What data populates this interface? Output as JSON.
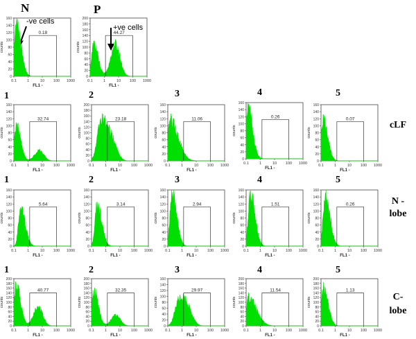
{
  "figure": {
    "controls_header": {
      "negative": "N",
      "positive": "P"
    },
    "annotations": {
      "negative_cells": "-ve cells",
      "positive_cells": "+ve cells"
    },
    "row_labels": {
      "clf": "cLF",
      "n_lobe_line1": "N -",
      "n_lobe_line2": "lobe",
      "c_lobe_line1": "C-",
      "c_lobe_line2": "lobe"
    },
    "sample_numbers": [
      "1",
      "2",
      "3",
      "4",
      "5"
    ],
    "colors": {
      "histogram": "#00e000",
      "axis": "#444444",
      "gate": "#333333"
    }
  },
  "chart_data": [
    {
      "id": "N",
      "type": "area",
      "row": "control",
      "title": "N",
      "xlabel": "FL1",
      "ylabel": "counts",
      "xscale": "log",
      "xlim": [
        0.1,
        1000
      ],
      "ylim": [
        0,
        160
      ],
      "yticks": [
        0,
        20,
        40,
        60,
        80,
        100,
        120,
        140,
        160
      ],
      "xticks": [
        "0.1",
        "1",
        "10",
        "100",
        "1000"
      ],
      "gate_percent": "0.18",
      "gate_range": [
        1.2,
        100
      ],
      "shape": "neg",
      "peak_x": 0.15,
      "peak_y": 150,
      "shoulder_x": 0,
      "shoulder_y": 0
    },
    {
      "id": "P",
      "type": "area",
      "row": "control",
      "title": "P",
      "xlabel": "FL1",
      "ylabel": "counts",
      "xscale": "log",
      "xlim": [
        0.1,
        1000
      ],
      "ylim": [
        0,
        200
      ],
      "yticks": [
        0,
        20,
        40,
        60,
        80,
        100,
        120,
        140,
        160,
        180,
        200
      ],
      "xticks": [
        "0.1",
        "1",
        "10",
        "100",
        "1000"
      ],
      "gate_percent": "44.27",
      "gate_range": [
        1.2,
        100
      ],
      "shape": "bi",
      "peak_x": 0.18,
      "peak_y": 110,
      "shoulder_x": 6,
      "shoulder_y": 110
    },
    {
      "id": "cLF-1",
      "type": "area",
      "row": "cLF",
      "sample": "1",
      "xlabel": "FL1",
      "ylabel": "counts",
      "xscale": "log",
      "xlim": [
        0.1,
        1000
      ],
      "ylim": [
        0,
        160
      ],
      "yticks": [
        0,
        20,
        40,
        60,
        80,
        100,
        120,
        140,
        160
      ],
      "xticks": [
        "0.1",
        "1",
        "10",
        "100",
        "1000"
      ],
      "gate_percent": "32.74",
      "gate_range": [
        1.3,
        100
      ],
      "shape": "bi",
      "peak_x": 0.15,
      "peak_y": 100,
      "shoulder_x": 6,
      "shoulder_y": 30
    },
    {
      "id": "cLF-2",
      "type": "area",
      "row": "cLF",
      "sample": "2",
      "xlabel": "FL1",
      "ylabel": "counts",
      "xscale": "log",
      "xlim": [
        0.1,
        1000
      ],
      "ylim": [
        0,
        200
      ],
      "yticks": [
        0,
        20,
        40,
        60,
        80,
        100,
        120,
        140,
        160,
        180,
        200
      ],
      "xticks": [
        "0.1",
        "1",
        "10",
        "100",
        "1000"
      ],
      "gate_percent": "23.18",
      "gate_range": [
        1.3,
        100
      ],
      "shape": "wide",
      "peak_x": 0.5,
      "peak_y": 140,
      "shoulder_x": 3,
      "shoulder_y": 90
    },
    {
      "id": "cLF-3",
      "type": "area",
      "row": "cLF",
      "sample": "3",
      "xlabel": "FL1",
      "ylabel": "counts",
      "xscale": "log",
      "xlim": [
        0.1,
        1000
      ],
      "ylim": [
        0,
        160
      ],
      "yticks": [
        0,
        20,
        40,
        60,
        80,
        100,
        120,
        140,
        160
      ],
      "xticks": [
        "0.1",
        "1",
        "10",
        "100",
        "1000"
      ],
      "gate_percent": "11.06",
      "gate_range": [
        1.3,
        100
      ],
      "shape": "tail",
      "peak_x": 0.15,
      "peak_y": 115,
      "shoulder_x": 0,
      "shoulder_y": 0
    },
    {
      "id": "cLF-4",
      "type": "area",
      "row": "cLF",
      "sample": "4",
      "xlabel": "FL1",
      "ylabel": "counts",
      "xscale": "log",
      "xlim": [
        0.1,
        1000
      ],
      "ylim": [
        0,
        160
      ],
      "yticks": [
        0,
        20,
        40,
        60,
        80,
        100,
        120,
        140,
        160
      ],
      "xticks": [
        "0.1",
        "1",
        "10",
        "100",
        "1000"
      ],
      "gate_percent": "0.26",
      "gate_range": [
        1.3,
        100
      ],
      "shape": "neg",
      "peak_x": 0.13,
      "peak_y": 150,
      "shoulder_x": 0,
      "shoulder_y": 0
    },
    {
      "id": "cLF-5",
      "type": "area",
      "row": "cLF",
      "sample": "5",
      "xlabel": "FL1",
      "ylabel": "counts",
      "xscale": "log",
      "xlim": [
        0.1,
        1000
      ],
      "ylim": [
        0,
        160
      ],
      "yticks": [
        0,
        20,
        40,
        60,
        80,
        100,
        120,
        140,
        160
      ],
      "xticks": [
        "0.1",
        "1",
        "10",
        "100",
        "1000"
      ],
      "gate_percent": "0.07",
      "gate_range": [
        1.3,
        100
      ],
      "shape": "neg",
      "peak_x": 0.14,
      "peak_y": 115,
      "shoulder_x": 0,
      "shoulder_y": 0
    },
    {
      "id": "N-1",
      "type": "area",
      "row": "N-lobe",
      "sample": "1",
      "xlabel": "FL1",
      "ylabel": "counts",
      "xscale": "log",
      "xlim": [
        0.1,
        1000
      ],
      "ylim": [
        0,
        160
      ],
      "yticks": [
        0,
        20,
        40,
        60,
        80,
        100,
        120,
        140,
        160
      ],
      "xticks": [
        "0.1",
        "1",
        "10",
        "100",
        "1000"
      ],
      "gate_percent": "5.64",
      "gate_range": [
        1.3,
        100
      ],
      "shape": "neg",
      "peak_x": 0.3,
      "peak_y": 110,
      "shoulder_x": 0,
      "shoulder_y": 0
    },
    {
      "id": "N-2",
      "type": "area",
      "row": "N-lobe",
      "sample": "2",
      "xlabel": "FL1",
      "ylabel": "counts",
      "xscale": "log",
      "xlim": [
        0.1,
        1000
      ],
      "ylim": [
        0,
        160
      ],
      "yticks": [
        0,
        20,
        40,
        60,
        80,
        100,
        120,
        140,
        160
      ],
      "xticks": [
        "0.1",
        "1",
        "10",
        "100",
        "1000"
      ],
      "gate_percent": "3.14",
      "gate_range": [
        1.3,
        100
      ],
      "shape": "neg",
      "peak_x": 0.25,
      "peak_y": 115,
      "shoulder_x": 0,
      "shoulder_y": 0
    },
    {
      "id": "N-3",
      "type": "area",
      "row": "N-lobe",
      "sample": "3",
      "xlabel": "FL1",
      "ylabel": "counts",
      "xscale": "log",
      "xlim": [
        0.1,
        1000
      ],
      "ylim": [
        0,
        160
      ],
      "yticks": [
        0,
        20,
        40,
        60,
        80,
        100,
        120,
        140,
        160
      ],
      "xticks": [
        "0.1",
        "1",
        "10",
        "100",
        "1000"
      ],
      "gate_percent": "2.94",
      "gate_range": [
        1.3,
        100
      ],
      "shape": "neg",
      "peak_x": 0.2,
      "peak_y": 150,
      "shoulder_x": 0,
      "shoulder_y": 0
    },
    {
      "id": "N-4",
      "type": "area",
      "row": "N-lobe",
      "sample": "4",
      "xlabel": "FL1",
      "ylabel": "counts",
      "xscale": "log",
      "xlim": [
        0.1,
        1000
      ],
      "ylim": [
        0,
        160
      ],
      "yticks": [
        0,
        20,
        40,
        60,
        80,
        100,
        120,
        140,
        160
      ],
      "xticks": [
        "0.1",
        "1",
        "10",
        "100",
        "1000"
      ],
      "gate_percent": "1.51",
      "gate_range": [
        1.3,
        100
      ],
      "shape": "neg",
      "peak_x": 0.2,
      "peak_y": 150,
      "shoulder_x": 0,
      "shoulder_y": 0
    },
    {
      "id": "N-5",
      "type": "area",
      "row": "N-lobe",
      "sample": "5",
      "xlabel": "FL1",
      "ylabel": "counts",
      "xscale": "log",
      "xlim": [
        0.1,
        1000
      ],
      "ylim": [
        0,
        160
      ],
      "yticks": [
        0,
        20,
        40,
        60,
        80,
        100,
        120,
        140,
        160
      ],
      "xticks": [
        "0.1",
        "1",
        "10",
        "100",
        "1000"
      ],
      "gate_percent": "0.26",
      "gate_range": [
        1.3,
        100
      ],
      "shape": "neg",
      "peak_x": 0.2,
      "peak_y": 150,
      "shoulder_x": 0,
      "shoulder_y": 0
    },
    {
      "id": "C-1",
      "type": "area",
      "row": "C-lobe",
      "sample": "1",
      "xlabel": "FL1",
      "ylabel": "counts",
      "xscale": "log",
      "xlim": [
        0.1,
        1000
      ],
      "ylim": [
        0,
        200
      ],
      "yticks": [
        0,
        20,
        40,
        60,
        80,
        100,
        120,
        140,
        160,
        180,
        200
      ],
      "xticks": [
        "0.1",
        "1",
        "10",
        "100",
        "1000"
      ],
      "gate_percent": "40.77",
      "gate_range": [
        1.3,
        100
      ],
      "shape": "bi",
      "peak_x": 0.15,
      "peak_y": 170,
      "shoulder_x": 5,
      "shoulder_y": 80
    },
    {
      "id": "C-2",
      "type": "area",
      "row": "C-lobe",
      "sample": "2",
      "xlabel": "FL1",
      "ylabel": "counts",
      "xscale": "log",
      "xlim": [
        0.1,
        1000
      ],
      "ylim": [
        0,
        200
      ],
      "yticks": [
        0,
        20,
        40,
        60,
        80,
        100,
        120,
        140,
        160,
        180,
        200
      ],
      "xticks": [
        "0.1",
        "1",
        "10",
        "100",
        "1000"
      ],
      "gate_percent": "32.35",
      "gate_range": [
        1.3,
        100
      ],
      "shape": "bi",
      "peak_x": 0.15,
      "peak_y": 150,
      "shoulder_x": 5,
      "shoulder_y": 45
    },
    {
      "id": "C-3",
      "type": "area",
      "row": "C-lobe",
      "sample": "3",
      "xlabel": "FL1",
      "ylabel": "counts",
      "xscale": "log",
      "xlim": [
        0.1,
        1000
      ],
      "ylim": [
        0,
        160
      ],
      "yticks": [
        0,
        20,
        40,
        60,
        80,
        100,
        120,
        140,
        160
      ],
      "xticks": [
        "0.1",
        "1",
        "10",
        "100",
        "1000"
      ],
      "gate_percent": "29.97",
      "gate_range": [
        1.3,
        100
      ],
      "shape": "wide",
      "peak_x": 0.6,
      "peak_y": 80,
      "shoulder_x": 2.5,
      "shoulder_y": 75
    },
    {
      "id": "C-4",
      "type": "area",
      "row": "C-lobe",
      "sample": "4",
      "xlabel": "FL1",
      "ylabel": "counts",
      "xscale": "log",
      "xlim": [
        0.1,
        1000
      ],
      "ylim": [
        0,
        200
      ],
      "yticks": [
        0,
        20,
        40,
        60,
        80,
        100,
        120,
        140,
        160,
        180,
        200
      ],
      "xticks": [
        "0.1",
        "1",
        "10",
        "100",
        "1000"
      ],
      "gate_percent": "11.54",
      "gate_range": [
        1.3,
        100
      ],
      "shape": "tail",
      "peak_x": 0.15,
      "peak_y": 120,
      "shoulder_x": 0,
      "shoulder_y": 0
    },
    {
      "id": "C-5",
      "type": "area",
      "row": "C-lobe",
      "sample": "5",
      "xlabel": "FL1",
      "ylabel": "counts",
      "xscale": "log",
      "xlim": [
        0.1,
        1000
      ],
      "ylim": [
        0,
        200
      ],
      "yticks": [
        0,
        20,
        40,
        60,
        80,
        100,
        120,
        140,
        160,
        180,
        200
      ],
      "xticks": [
        "0.1",
        "1",
        "10",
        "100",
        "1000"
      ],
      "gate_percent": "1.13",
      "gate_range": [
        1.3,
        100
      ],
      "shape": "neg",
      "peak_x": 0.15,
      "peak_y": 160,
      "shoulder_x": 0,
      "shoulder_y": 0
    }
  ]
}
